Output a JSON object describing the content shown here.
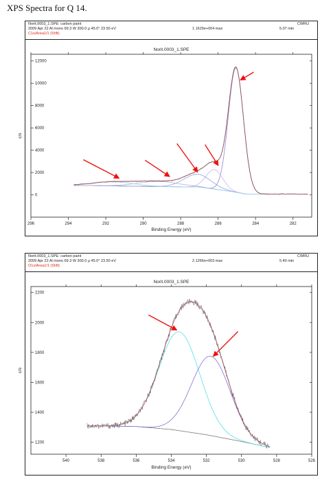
{
  "page": {
    "title": "XPS Spectra for Q 14."
  },
  "chart_data": [
    {
      "type": "line",
      "header": {
        "file": "Norit.0003_1.SPE: carbon paint",
        "acq": "2009 Apr 22  Al mono  69.3 W  300.0 µ  45.0°  23.50 eV",
        "region": "C1s/Area1/1 (Shft)",
        "max": "1.1629e+004 max",
        "time": "5.07 min",
        "org": "CWRU"
      },
      "title": "Norit.0003_1.SPE",
      "xlabel": "Binding Energy (eV)",
      "ylabel": "c/s",
      "xlim": [
        296,
        281
      ],
      "ylim": [
        -2000,
        12600
      ],
      "xticks": [
        296,
        294,
        292,
        290,
        288,
        286,
        284,
        282
      ],
      "yticks": [
        0,
        2000,
        4000,
        6000,
        8000,
        10000,
        12000
      ],
      "background": [
        [
          293.7,
          850
        ],
        [
          290,
          760
        ],
        [
          287,
          700
        ],
        [
          285.3,
          300
        ],
        [
          284.5,
          70
        ],
        [
          281.2,
          60
        ]
      ],
      "components": [
        {
          "center": 285.05,
          "fwhm": 0.95,
          "height": 11150,
          "color": "#9a7fd0"
        },
        {
          "center": 286.2,
          "fwhm": 1.05,
          "height": 1750,
          "color": "#c7b6ee"
        },
        {
          "center": 287.1,
          "fwhm": 1.7,
          "height": 1150,
          "color": "#8aa0e0"
        },
        {
          "center": 289.2,
          "fwhm": 2.6,
          "height": 450,
          "color": "#b2b2d6"
        },
        {
          "center": 291.6,
          "fwhm": 2.6,
          "height": 360,
          "color": "#9fd4e8"
        }
      ],
      "envelope_color": "#d07a86",
      "raw_color": "#555555",
      "arrows": [
        {
          "from": [
            293.2,
            3150
          ],
          "to": [
            291.3,
            1500
          ]
        },
        {
          "from": [
            289.9,
            3100
          ],
          "to": [
            288.6,
            1650
          ]
        },
        {
          "from": [
            288.2,
            4600
          ],
          "to": [
            287.1,
            2050
          ]
        },
        {
          "from": [
            286.7,
            4500
          ],
          "to": [
            286.0,
            2650
          ]
        },
        {
          "from": [
            284.1,
            11000
          ],
          "to": [
            284.8,
            10300
          ]
        }
      ]
    },
    {
      "type": "line",
      "header": {
        "file": "Norit.0003_1.SPE: carbon paint",
        "acq": "2009 Apr 22  Al mono  69.3 W  300.0 µ  45.0°  23.50 eV",
        "region": "O1s/Area1/1 (Shft)",
        "max": "2.1266e+003 max",
        "time": "5.40 min",
        "org": "CWRU"
      },
      "title": "Norit.0003_1.SPE",
      "xlabel": "Binding Energy (eV)",
      "ylabel": "c/s",
      "xlim": [
        542,
        526
      ],
      "ylim": [
        1120,
        2240
      ],
      "xticks": [
        540,
        538,
        536,
        534,
        532,
        530,
        528,
        526
      ],
      "yticks": [
        1200,
        1400,
        1600,
        1800,
        2000,
        2200
      ],
      "background": [
        [
          538.8,
          1310
        ],
        [
          536,
          1305
        ],
        [
          534,
          1285
        ],
        [
          532,
          1250
        ],
        [
          530,
          1205
        ],
        [
          528.4,
          1165
        ]
      ],
      "components": [
        {
          "center": 533.55,
          "fwhm": 2.75,
          "height": 660,
          "color": "#4fe0ea"
        },
        {
          "center": 531.75,
          "fwhm": 2.6,
          "height": 530,
          "color": "#8a6fd0"
        }
      ],
      "envelope_color": "#d07a86",
      "raw_color": "#555555",
      "arrows": [
        {
          "from": [
            535.3,
            2050
          ],
          "to": [
            533.7,
            1950
          ]
        },
        {
          "from": [
            530.2,
            1940
          ],
          "to": [
            531.6,
            1775
          ]
        }
      ]
    }
  ]
}
